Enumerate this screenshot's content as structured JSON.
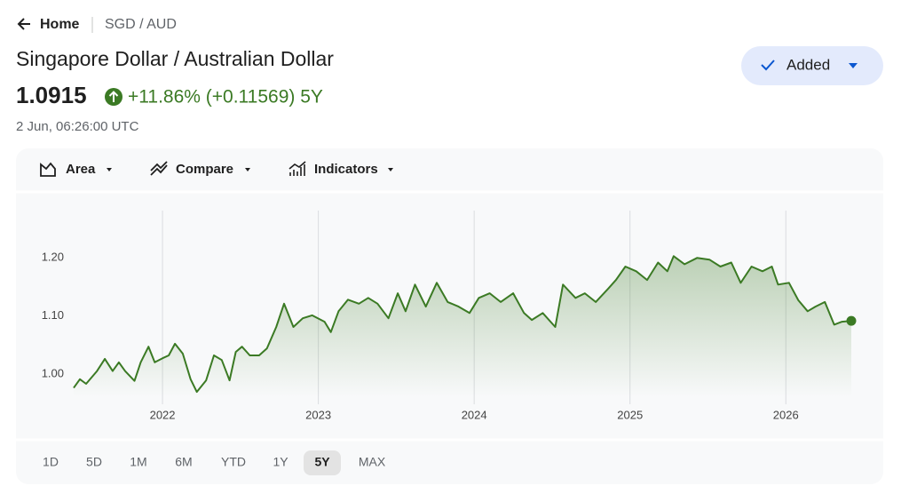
{
  "breadcrumb": {
    "back": "Home",
    "pair": "SGD / AUD"
  },
  "title": "Singapore Dollar / Australian Dollar",
  "price": "1.0915",
  "change": "+11.86% (+0.11569) 5Y",
  "timestamp": "2 Jun, 06:26:00 UTC",
  "button": "Added",
  "toolbar": [
    "Area",
    "Compare",
    "Indicators"
  ],
  "ranges": [
    "1D",
    "5D",
    "1M",
    "6M",
    "YTD",
    "1Y",
    "5Y",
    "MAX"
  ],
  "selected_range": "5Y",
  "chart_data": {
    "type": "area",
    "color": "#3b7a24",
    "x": [
      2021.43,
      2021.47,
      2021.51,
      2021.58,
      2021.63,
      2021.68,
      2021.72,
      2021.76,
      2021.82,
      2021.86,
      2021.91,
      2021.95,
      2022.0,
      2022.04,
      2022.08,
      2022.13,
      2022.18,
      2022.22,
      2022.28,
      2022.33,
      2022.38,
      2022.43,
      2022.47,
      2022.51,
      2022.56,
      2022.62,
      2022.67,
      2022.73,
      2022.78,
      2022.84,
      2022.9,
      2022.96,
      2023.04,
      2023.08,
      2023.13,
      2023.19,
      2023.26,
      2023.32,
      2023.38,
      2023.45,
      2023.51,
      2023.56,
      2023.62,
      2023.69,
      2023.76,
      2023.83,
      2023.9,
      2023.97,
      2024.03,
      2024.1,
      2024.17,
      2024.25,
      2024.32,
      2024.37,
      2024.44,
      2024.52,
      2024.57,
      2024.65,
      2024.71,
      2024.78,
      2024.86,
      2024.91,
      2024.97,
      2025.04,
      2025.11,
      2025.18,
      2025.24,
      2025.28,
      2025.35,
      2025.43,
      2025.51,
      2025.58,
      2025.65,
      2025.71,
      2025.78,
      2025.85,
      2025.91,
      2025.95,
      2026.02,
      2026.08,
      2026.14,
      2026.19,
      2026.25,
      2026.31,
      2026.36,
      2026.42
    ],
    "values": [
      0.976,
      0.991,
      0.983,
      1.005,
      1.026,
      1.005,
      1.02,
      1.005,
      0.988,
      1.02,
      1.047,
      1.02,
      1.027,
      1.032,
      1.052,
      1.035,
      0.991,
      0.969,
      0.989,
      1.032,
      1.024,
      0.989,
      1.038,
      1.047,
      1.032,
      1.032,
      1.044,
      1.081,
      1.121,
      1.081,
      1.096,
      1.101,
      1.09,
      1.072,
      1.108,
      1.128,
      1.121,
      1.131,
      1.121,
      1.096,
      1.139,
      1.108,
      1.154,
      1.116,
      1.157,
      1.124,
      1.116,
      1.105,
      1.131,
      1.139,
      1.124,
      1.139,
      1.105,
      1.093,
      1.105,
      1.081,
      1.154,
      1.131,
      1.139,
      1.124,
      1.147,
      1.162,
      1.185,
      1.177,
      1.162,
      1.192,
      1.177,
      1.203,
      1.189,
      1.2,
      1.197,
      1.185,
      1.192,
      1.157,
      1.185,
      1.177,
      1.185,
      1.154,
      1.157,
      1.127,
      1.108,
      1.116,
      1.124,
      1.085,
      1.09,
      1.0915
    ],
    "xlim": [
      2021.43,
      2026.42
    ],
    "xticks": [
      2022,
      2023,
      2024,
      2025,
      2026
    ],
    "ylim": [
      0.96,
      1.28
    ],
    "yticks": [
      {
        "value": 1.0,
        "label": "1.00"
      },
      {
        "value": 1.1,
        "label": "1.10"
      },
      {
        "value": 1.2,
        "label": "1.20"
      }
    ],
    "grid": true
  }
}
